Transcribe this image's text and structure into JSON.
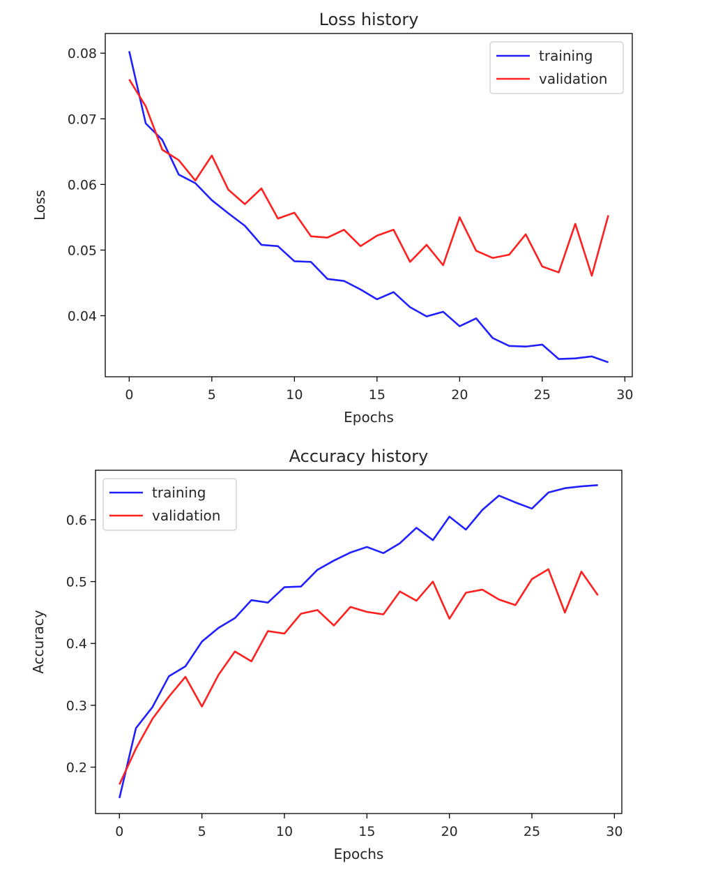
{
  "chart_data": [
    {
      "type": "line",
      "title": "Loss history",
      "xlabel": "Epochs",
      "ylabel": "Loss",
      "xlim": [
        -1.45,
        30.45
      ],
      "ylim": [
        0.0307,
        0.083
      ],
      "xticks": [
        0,
        5,
        10,
        15,
        20,
        25,
        30
      ],
      "xtick_labels": [
        "0",
        "5",
        "10",
        "15",
        "20",
        "25",
        "30"
      ],
      "yticks": [
        0.04,
        0.05,
        0.06,
        0.07,
        0.08
      ],
      "ytick_labels": [
        "0.04",
        "0.05",
        "0.06",
        "0.07",
        "0.08"
      ],
      "grid": false,
      "legend_position": "top-right",
      "x": [
        0,
        1,
        2,
        3,
        4,
        5,
        6,
        7,
        8,
        9,
        10,
        11,
        12,
        13,
        14,
        15,
        16,
        17,
        18,
        19,
        20,
        21,
        22,
        23,
        24,
        25,
        26,
        27,
        28,
        29
      ],
      "series": [
        {
          "name": "training",
          "color": "#1f1fff",
          "values": [
            0.0803,
            0.0693,
            0.0668,
            0.0615,
            0.0602,
            0.0576,
            0.0556,
            0.0537,
            0.0508,
            0.0506,
            0.0483,
            0.0482,
            0.0456,
            0.0453,
            0.044,
            0.0425,
            0.0436,
            0.0413,
            0.0399,
            0.0406,
            0.0384,
            0.0396,
            0.0366,
            0.0354,
            0.0353,
            0.0356,
            0.0334,
            0.0335,
            0.0338,
            0.0329
          ]
        },
        {
          "name": "validation",
          "color": "#ff1f1f",
          "values": [
            0.076,
            0.0719,
            0.0653,
            0.0637,
            0.0606,
            0.0644,
            0.0592,
            0.057,
            0.0594,
            0.0548,
            0.0557,
            0.0521,
            0.0519,
            0.0531,
            0.0506,
            0.0522,
            0.0531,
            0.0482,
            0.0508,
            0.0477,
            0.055,
            0.0499,
            0.0488,
            0.0493,
            0.0524,
            0.0475,
            0.0466,
            0.054,
            0.0461,
            0.0553
          ]
        }
      ]
    },
    {
      "type": "line",
      "title": "Accuracy history",
      "xlabel": "Epochs",
      "ylabel": "Accuracy",
      "xlim": [
        -1.45,
        30.45
      ],
      "ylim": [
        0.125,
        0.68
      ],
      "xticks": [
        0,
        5,
        10,
        15,
        20,
        25,
        30
      ],
      "xtick_labels": [
        "0",
        "5",
        "10",
        "15",
        "20",
        "25",
        "30"
      ],
      "yticks": [
        0.2,
        0.3,
        0.4,
        0.5,
        0.6
      ],
      "ytick_labels": [
        "0.2",
        "0.3",
        "0.4",
        "0.5",
        "0.6"
      ],
      "grid": false,
      "legend_position": "top-left",
      "x": [
        0,
        1,
        2,
        3,
        4,
        5,
        6,
        7,
        8,
        9,
        10,
        11,
        12,
        13,
        14,
        15,
        16,
        17,
        18,
        19,
        20,
        21,
        22,
        23,
        24,
        25,
        26,
        27,
        28,
        29
      ],
      "series": [
        {
          "name": "training",
          "color": "#1f1fff",
          "values": [
            0.15,
            0.263,
            0.297,
            0.347,
            0.363,
            0.403,
            0.425,
            0.441,
            0.47,
            0.466,
            0.491,
            0.492,
            0.519,
            0.534,
            0.547,
            0.556,
            0.546,
            0.562,
            0.587,
            0.567,
            0.605,
            0.584,
            0.616,
            0.639,
            0.628,
            0.618,
            0.644,
            0.651,
            0.654,
            0.656
          ]
        },
        {
          "name": "validation",
          "color": "#ff1f1f",
          "values": [
            0.172,
            0.23,
            0.278,
            0.314,
            0.346,
            0.298,
            0.349,
            0.387,
            0.371,
            0.42,
            0.416,
            0.448,
            0.454,
            0.429,
            0.459,
            0.451,
            0.447,
            0.484,
            0.469,
            0.5,
            0.44,
            0.482,
            0.487,
            0.471,
            0.462,
            0.504,
            0.52,
            0.45,
            0.516,
            0.478
          ]
        }
      ]
    }
  ]
}
